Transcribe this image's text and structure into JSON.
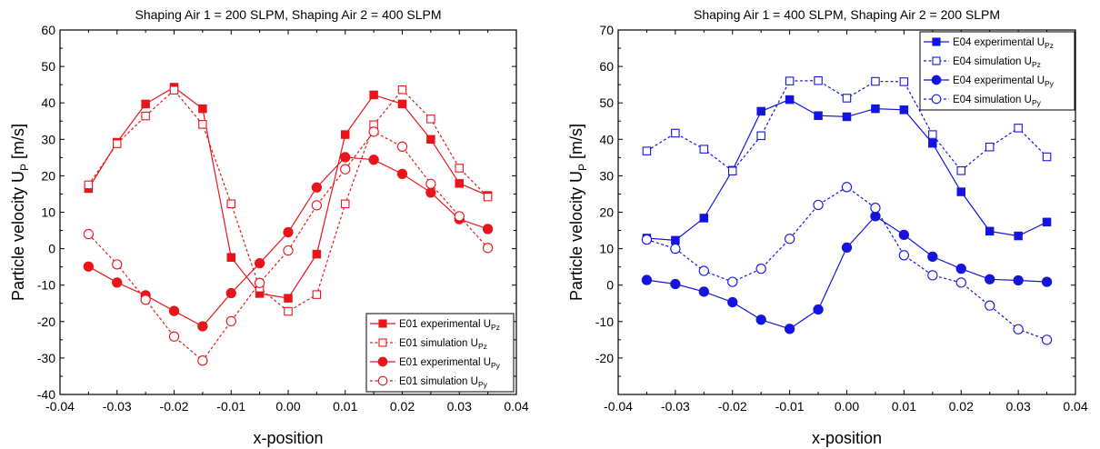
{
  "chart_data": [
    {
      "type": "line",
      "title": "Shaping Air 1 = 200 SLPM, Shaping Air 2 = 400 SLPM",
      "xlabel": "x-position",
      "ylabel_main": "Particle velocity U",
      "ylabel_sub": "P",
      "ylabel_unit": " [m/s]",
      "xlim": [
        -0.04,
        0.04
      ],
      "ylim": [
        -40,
        60
      ],
      "xticks": [
        -0.04,
        -0.03,
        -0.02,
        -0.01,
        0.0,
        0.01,
        0.02,
        0.03,
        0.04
      ],
      "xtick_labels": [
        "-0.04",
        "-0.03",
        "-0.02",
        "-0.01",
        "0.00",
        "0.01",
        "0.02",
        "0.03",
        "0.04"
      ],
      "yticks": [
        -40,
        -30,
        -20,
        -10,
        0,
        10,
        20,
        30,
        40,
        50,
        60
      ],
      "ytick_labels": [
        "-40",
        "-30",
        "-20",
        "-10",
        "0",
        "10",
        "20",
        "30",
        "40",
        "50",
        "60"
      ],
      "color": "#e8151b",
      "legend_position": "bottom-right",
      "x": [
        -0.035,
        -0.03,
        -0.025,
        -0.02,
        -0.015,
        -0.01,
        -0.005,
        0.0,
        0.005,
        0.01,
        0.015,
        0.02,
        0.025,
        0.03,
        0.035
      ],
      "series": [
        {
          "name": "E01 experimental U",
          "sub": "Pz",
          "marker": "square",
          "filled": true,
          "dashed": false,
          "values": [
            16.5,
            29.2,
            39.7,
            44.3,
            38.4,
            -2.4,
            -12.3,
            -13.6,
            -1.5,
            31.3,
            42.2,
            39.7,
            30.0,
            17.9,
            14.6
          ]
        },
        {
          "name": "E01 simulation U",
          "sub": "Pz",
          "marker": "square",
          "filled": false,
          "dashed": true,
          "values": [
            17.5,
            28.8,
            36.4,
            43.5,
            34.1,
            12.3,
            -10.8,
            -17.2,
            -12.6,
            12.3,
            34.0,
            43.6,
            35.6,
            22.1,
            14.2
          ]
        },
        {
          "name": "E01 experimental U",
          "sub": "Py",
          "marker": "circle",
          "filled": true,
          "dashed": false,
          "values": [
            -4.9,
            -9.3,
            -12.8,
            -17.1,
            -21.3,
            -12.2,
            -4.0,
            4.5,
            16.8,
            25.1,
            24.4,
            20.5,
            15.4,
            8.1,
            5.4
          ]
        },
        {
          "name": "E01 simulation U",
          "sub": "Py",
          "marker": "circle",
          "filled": false,
          "dashed": true,
          "values": [
            4.0,
            -4.3,
            -14.0,
            -24.1,
            -30.7,
            -19.9,
            -9.4,
            -0.5,
            11.9,
            21.8,
            32.1,
            28.0,
            17.8,
            8.9,
            0.2
          ]
        }
      ]
    },
    {
      "type": "line",
      "title": "Shaping Air 1 = 400 SLPM, Shaping Air 2 = 200 SLPM",
      "xlabel": "x-position",
      "ylabel_main": "Particle velocity U",
      "ylabel_sub": "P",
      "ylabel_unit": " [m/s]",
      "xlim": [
        -0.04,
        0.04
      ],
      "ylim": [
        -30,
        70
      ],
      "xticks": [
        -0.04,
        -0.03,
        -0.02,
        -0.01,
        0.0,
        0.01,
        0.02,
        0.03,
        0.04
      ],
      "xtick_labels": [
        "-0.04",
        "-0.03",
        "-0.02",
        "-0.01",
        "0.00",
        "0.01",
        "0.02",
        "0.03",
        "0.04"
      ],
      "yticks": [
        -20,
        -10,
        0,
        10,
        20,
        30,
        40,
        50,
        60,
        70
      ],
      "ytick_labels": [
        "-20",
        "-10",
        "0",
        "10",
        "20",
        "30",
        "40",
        "50",
        "60",
        "70"
      ],
      "color": "#1414e0",
      "legend_position": "top-right",
      "x": [
        -0.035,
        -0.03,
        -0.025,
        -0.02,
        -0.015,
        -0.01,
        -0.005,
        0.0,
        0.005,
        0.01,
        0.015,
        0.02,
        0.025,
        0.03,
        0.035
      ],
      "series": [
        {
          "name": "E04 experimental U",
          "sub": "Pz",
          "marker": "square",
          "filled": true,
          "dashed": false,
          "values": [
            12.9,
            12.3,
            18.4,
            31.5,
            47.7,
            50.9,
            46.5,
            46.2,
            48.4,
            48.1,
            38.9,
            25.6,
            14.8,
            13.5,
            17.3
          ]
        },
        {
          "name": "E04 simulation U",
          "sub": "Pz",
          "marker": "square",
          "filled": false,
          "dashed": true,
          "values": [
            36.8,
            41.7,
            37.3,
            31.3,
            41.0,
            56.0,
            56.1,
            51.3,
            55.9,
            55.8,
            41.3,
            31.4,
            37.9,
            43.1,
            35.2
          ]
        },
        {
          "name": "E04 experimental U",
          "sub": "Py",
          "marker": "circle",
          "filled": true,
          "dashed": false,
          "values": [
            1.4,
            0.3,
            -1.8,
            -4.7,
            -9.5,
            -12.0,
            -6.7,
            10.3,
            18.9,
            13.8,
            7.8,
            4.5,
            1.6,
            1.3,
            0.9
          ]
        },
        {
          "name": "E04 simulation U",
          "sub": "Py",
          "marker": "circle",
          "filled": false,
          "dashed": true,
          "values": [
            12.5,
            10.0,
            3.9,
            0.9,
            4.5,
            12.7,
            22.0,
            26.9,
            21.2,
            8.2,
            2.7,
            0.7,
            -5.6,
            -12.1,
            -15.0
          ]
        }
      ]
    }
  ]
}
